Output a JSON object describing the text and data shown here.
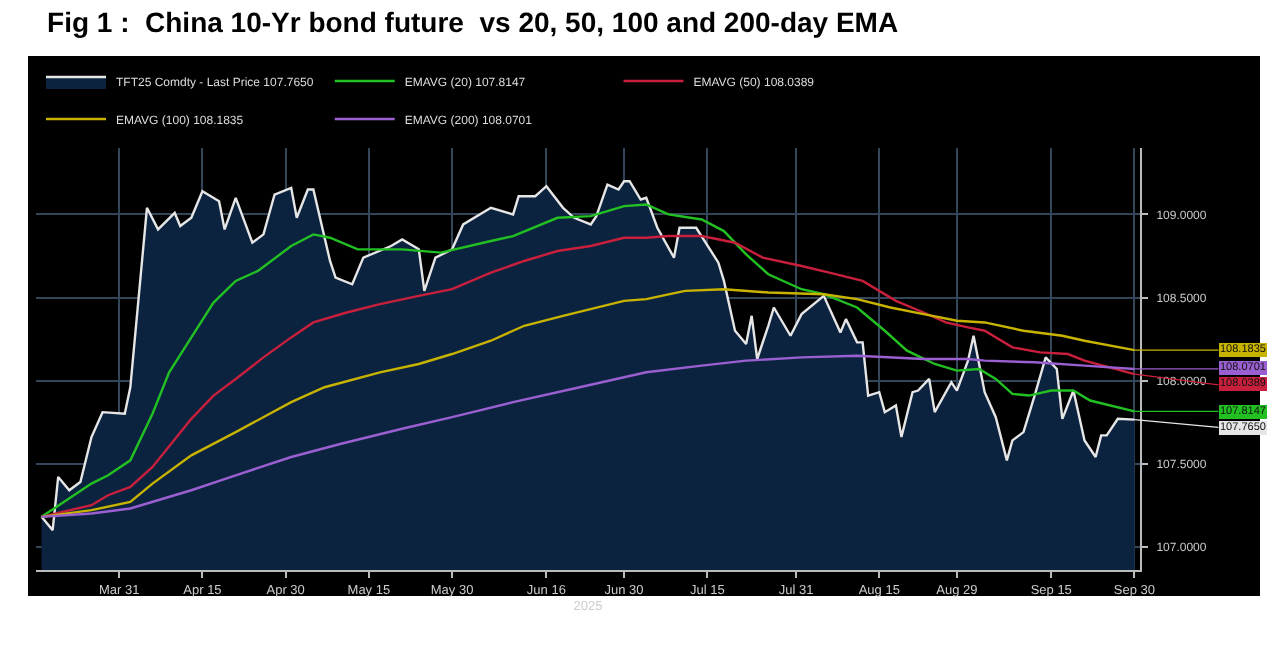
{
  "chart_data": {
    "type": "line",
    "title": "Fig 1 :  China 10-Yr bond future  vs 20, 50, 100 and 200-day EMA",
    "xlabel": "2025",
    "xlim": [
      "2025-03-16",
      "2025-10-01"
    ],
    "xticks": [
      {
        "value": "2025-03-31",
        "label": "Mar 31"
      },
      {
        "value": "2025-04-15",
        "label": "Apr 15"
      },
      {
        "value": "2025-04-30",
        "label": "Apr 30"
      },
      {
        "value": "2025-05-15",
        "label": "May 15"
      },
      {
        "value": "2025-05-30",
        "label": "May 30"
      },
      {
        "value": "2025-06-16",
        "label": "Jun 16"
      },
      {
        "value": "2025-06-30",
        "label": "Jun 30"
      },
      {
        "value": "2025-07-15",
        "label": "Jul 15"
      },
      {
        "value": "2025-07-31",
        "label": "Jul 31"
      },
      {
        "value": "2025-08-15",
        "label": "Aug 15"
      },
      {
        "value": "2025-08-29",
        "label": "Aug 29"
      },
      {
        "value": "2025-09-15",
        "label": "Sep 15"
      },
      {
        "value": "2025-09-30",
        "label": "Sep 30"
      }
    ],
    "ylim": [
      106.86,
      109.4
    ],
    "yticks": [
      {
        "value": 107.0,
        "label": "107.0000"
      },
      {
        "value": 107.5,
        "label": "107.5000"
      },
      {
        "value": 108.0,
        "label": "108.0000"
      },
      {
        "value": 108.5,
        "label": "108.5000"
      },
      {
        "value": 109.0,
        "label": "109.0000"
      }
    ],
    "grid": true,
    "legend": "top left",
    "marker": "none",
    "line_style": "solid",
    "series": [
      {
        "name": "TFT25 Comdty - Last Price 107.7650",
        "type": "area",
        "color": "#e6e6e6",
        "x": [
          "2025-03-17",
          "2025-03-19",
          "2025-03-20",
          "2025-03-22",
          "2025-03-24",
          "2025-03-26",
          "2025-03-28",
          "2025-04-01",
          "2025-04-02",
          "2025-04-05",
          "2025-04-07",
          "2025-04-10",
          "2025-04-11",
          "2025-04-13",
          "2025-04-15",
          "2025-04-18",
          "2025-04-19",
          "2025-04-21",
          "2025-04-24",
          "2025-04-26",
          "2025-04-28",
          "2025-05-01",
          "2025-05-02",
          "2025-05-04",
          "2025-05-05",
          "2025-05-08",
          "2025-05-09",
          "2025-05-12",
          "2025-05-14",
          "2025-05-19",
          "2025-05-21",
          "2025-05-24",
          "2025-05-25",
          "2025-05-27",
          "2025-05-30",
          "2025-06-01",
          "2025-06-06",
          "2025-06-10",
          "2025-06-11",
          "2025-06-14",
          "2025-06-16",
          "2025-06-19",
          "2025-06-21",
          "2025-06-24",
          "2025-06-25",
          "2025-06-27",
          "2025-06-29",
          "2025-06-30",
          "2025-07-01",
          "2025-07-03",
          "2025-07-04",
          "2025-07-06",
          "2025-07-09",
          "2025-07-10",
          "2025-07-13",
          "2025-07-17",
          "2025-07-18",
          "2025-07-20",
          "2025-07-22",
          "2025-07-23",
          "2025-07-24",
          "2025-07-26",
          "2025-07-27",
          "2025-07-30",
          "2025-08-01",
          "2025-08-05",
          "2025-08-08",
          "2025-08-09",
          "2025-08-11",
          "2025-08-12",
          "2025-08-13",
          "2025-08-15",
          "2025-08-16",
          "2025-08-18",
          "2025-08-19",
          "2025-08-21",
          "2025-08-22",
          "2025-08-24",
          "2025-08-25",
          "2025-08-28",
          "2025-08-29",
          "2025-08-31",
          "2025-09-01",
          "2025-09-03",
          "2025-09-05",
          "2025-09-07",
          "2025-09-08",
          "2025-09-10",
          "2025-09-12",
          "2025-09-14",
          "2025-09-16",
          "2025-09-17",
          "2025-09-19",
          "2025-09-21",
          "2025-09-23",
          "2025-09-24",
          "2025-09-25",
          "2025-09-27",
          "2025-09-30"
        ],
        "values": [
          107.18,
          107.1,
          107.42,
          107.34,
          107.39,
          107.66,
          107.81,
          107.8,
          107.96,
          109.04,
          108.91,
          109.01,
          108.93,
          108.98,
          109.14,
          109.08,
          108.91,
          109.1,
          108.83,
          108.88,
          109.12,
          109.16,
          108.98,
          109.15,
          109.15,
          108.72,
          108.62,
          108.58,
          108.74,
          108.81,
          108.85,
          108.79,
          108.54,
          108.74,
          108.79,
          108.94,
          109.04,
          109.0,
          109.11,
          109.11,
          109.17,
          109.04,
          108.98,
          108.94,
          108.99,
          109.18,
          109.15,
          109.2,
          109.2,
          109.09,
          109.1,
          108.92,
          108.74,
          108.92,
          108.92,
          108.71,
          108.6,
          108.3,
          108.22,
          108.39,
          108.13,
          108.33,
          108.44,
          108.27,
          108.4,
          108.51,
          108.29,
          108.37,
          108.23,
          108.23,
          107.91,
          107.93,
          107.81,
          107.85,
          107.66,
          107.93,
          107.94,
          108.01,
          107.81,
          107.99,
          107.94,
          108.12,
          108.27,
          107.93,
          107.78,
          107.52,
          107.64,
          107.69,
          107.91,
          108.14,
          108.07,
          107.77,
          107.94,
          107.64,
          107.54,
          107.67,
          107.67,
          107.77,
          107.765
        ]
      },
      {
        "name": "EMAVG (20) 107.8147",
        "color": "#22c022",
        "x": [
          "2025-03-17",
          "2025-03-26",
          "2025-03-29",
          "2025-04-02",
          "2025-04-06",
          "2025-04-09",
          "2025-04-13",
          "2025-04-17",
          "2025-04-21",
          "2025-04-25",
          "2025-05-01",
          "2025-05-05",
          "2025-05-08",
          "2025-05-13",
          "2025-05-21",
          "2025-05-28",
          "2025-06-06",
          "2025-06-10",
          "2025-06-18",
          "2025-06-24",
          "2025-06-30",
          "2025-07-04",
          "2025-07-08",
          "2025-07-14",
          "2025-07-18",
          "2025-07-22",
          "2025-07-26",
          "2025-08-01",
          "2025-08-05",
          "2025-08-11",
          "2025-08-16",
          "2025-08-20",
          "2025-08-25",
          "2025-08-29",
          "2025-09-02",
          "2025-09-05",
          "2025-09-08",
          "2025-09-11",
          "2025-09-15",
          "2025-09-19",
          "2025-09-22",
          "2025-09-30"
        ],
        "values": [
          107.18,
          107.38,
          107.43,
          107.52,
          107.8,
          108.05,
          108.26,
          108.47,
          108.6,
          108.66,
          108.81,
          108.88,
          108.86,
          108.79,
          108.79,
          108.77,
          108.84,
          108.87,
          108.98,
          108.99,
          109.05,
          109.06,
          109.0,
          108.97,
          108.9,
          108.76,
          108.64,
          108.55,
          108.52,
          108.44,
          108.3,
          108.18,
          108.1,
          108.06,
          108.07,
          108.01,
          107.92,
          107.91,
          107.94,
          107.94,
          107.88,
          107.8147
        ]
      },
      {
        "name": "EMAVG (50) 108.0389",
        "color": "#c8203c",
        "x": [
          "2025-03-17",
          "2025-03-26",
          "2025-03-29",
          "2025-04-02",
          "2025-04-06",
          "2025-04-13",
          "2025-04-17",
          "2025-04-21",
          "2025-04-26",
          "2025-05-01",
          "2025-05-05",
          "2025-05-11",
          "2025-05-17",
          "2025-05-24",
          "2025-05-30",
          "2025-06-06",
          "2025-06-12",
          "2025-06-18",
          "2025-06-24",
          "2025-06-30",
          "2025-07-04",
          "2025-07-08",
          "2025-07-14",
          "2025-07-20",
          "2025-07-25",
          "2025-08-01",
          "2025-08-06",
          "2025-08-12",
          "2025-08-18",
          "2025-08-23",
          "2025-08-27",
          "2025-08-31",
          "2025-09-03",
          "2025-09-08",
          "2025-09-13",
          "2025-09-18",
          "2025-09-21",
          "2025-09-30"
        ],
        "values": [
          107.18,
          107.25,
          107.31,
          107.36,
          107.48,
          107.77,
          107.91,
          108.01,
          108.14,
          108.26,
          108.35,
          108.41,
          108.46,
          108.51,
          108.55,
          108.65,
          108.72,
          108.78,
          108.81,
          108.86,
          108.86,
          108.87,
          108.87,
          108.83,
          108.74,
          108.69,
          108.65,
          108.6,
          108.48,
          108.41,
          108.35,
          108.32,
          108.3,
          108.2,
          108.17,
          108.16,
          108.12,
          108.0389
        ]
      },
      {
        "name": "EMAVG (100) 108.1835",
        "color": "#c8b400",
        "x": [
          "2025-03-17",
          "2025-03-26",
          "2025-04-02",
          "2025-04-06",
          "2025-04-13",
          "2025-04-21",
          "2025-05-01",
          "2025-05-07",
          "2025-05-17",
          "2025-05-24",
          "2025-05-30",
          "2025-06-06",
          "2025-06-12",
          "2025-06-19",
          "2025-06-30",
          "2025-07-04",
          "2025-07-11",
          "2025-07-18",
          "2025-07-26",
          "2025-08-05",
          "2025-08-11",
          "2025-08-17",
          "2025-08-23",
          "2025-08-29",
          "2025-09-03",
          "2025-09-10",
          "2025-09-17",
          "2025-09-21",
          "2025-09-30"
        ],
        "values": [
          107.18,
          107.22,
          107.27,
          107.38,
          107.55,
          107.69,
          107.87,
          107.96,
          108.05,
          108.1,
          108.16,
          108.24,
          108.33,
          108.39,
          108.48,
          108.49,
          108.54,
          108.55,
          108.53,
          108.52,
          108.49,
          108.44,
          108.4,
          108.36,
          108.35,
          108.3,
          108.27,
          108.24,
          108.1835
        ]
      },
      {
        "name": "EMAVG (200) 108.0701",
        "color": "#9a5fd0",
        "x": [
          "2025-03-17",
          "2025-03-26",
          "2025-04-02",
          "2025-04-13",
          "2025-04-21",
          "2025-05-01",
          "2025-05-10",
          "2025-05-21",
          "2025-05-30",
          "2025-06-10",
          "2025-06-22",
          "2025-06-30",
          "2025-07-04",
          "2025-07-14",
          "2025-07-22",
          "2025-08-01",
          "2025-08-11",
          "2025-08-23",
          "2025-08-31",
          "2025-09-03",
          "2025-09-12",
          "2025-09-21",
          "2025-09-30"
        ],
        "values": [
          107.18,
          107.2,
          107.23,
          107.34,
          107.43,
          107.54,
          107.62,
          107.71,
          107.78,
          107.87,
          107.96,
          108.02,
          108.05,
          108.09,
          108.12,
          108.14,
          108.15,
          108.13,
          108.13,
          108.12,
          108.11,
          108.09,
          108.0701
        ]
      }
    ],
    "annotations": [
      {
        "text": "107.7650",
        "x": "2025-09-30",
        "y": 107.765
      },
      {
        "text": "107.8147",
        "x": "2025-09-30",
        "y": 107.8147
      },
      {
        "text": "108.0389",
        "x": "2025-09-30",
        "y": 108.0389
      },
      {
        "text": "108.1835",
        "x": "2025-09-30",
        "y": 108.1835
      },
      {
        "text": "108.0701",
        "x": "2025-09-30",
        "y": 108.0701
      }
    ]
  }
}
